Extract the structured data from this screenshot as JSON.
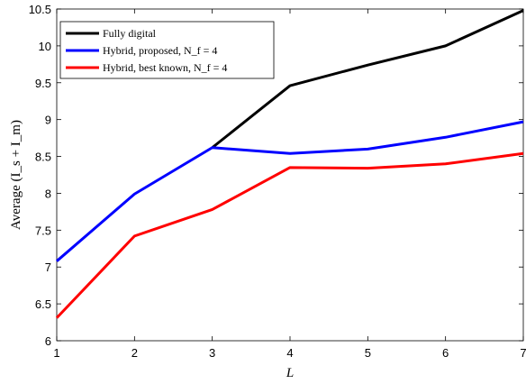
{
  "chart_data": {
    "type": "line",
    "xlabel": "L",
    "ylabel": "Average (I_s + I_m)",
    "xlim": [
      1,
      7
    ],
    "ylim": [
      6,
      10.5
    ],
    "x": [
      1,
      2,
      3,
      4,
      5,
      6,
      7
    ],
    "x_ticks": [
      "1",
      "2",
      "3",
      "4",
      "5",
      "6",
      "7"
    ],
    "y_ticks": [
      "6",
      "6.5",
      "7",
      "7.5",
      "8",
      "8.5",
      "9",
      "9.5",
      "10",
      "10.5"
    ],
    "grid": false,
    "legend_position": "top-left",
    "series": [
      {
        "name": "Fully digital",
        "color": "#000000",
        "values": [
          null,
          null,
          8.62,
          9.46,
          9.74,
          10.0,
          10.48
        ]
      },
      {
        "name": "Hybrid, proposed, N_f = 4",
        "color": "#0000ff",
        "values": [
          7.08,
          7.99,
          8.62,
          8.54,
          8.6,
          8.76,
          8.97
        ]
      },
      {
        "name": "Hybrid, best known, N_f = 4",
        "color": "#ff0000",
        "values": [
          6.31,
          7.42,
          7.78,
          8.35,
          8.34,
          8.4,
          8.54
        ]
      }
    ]
  }
}
